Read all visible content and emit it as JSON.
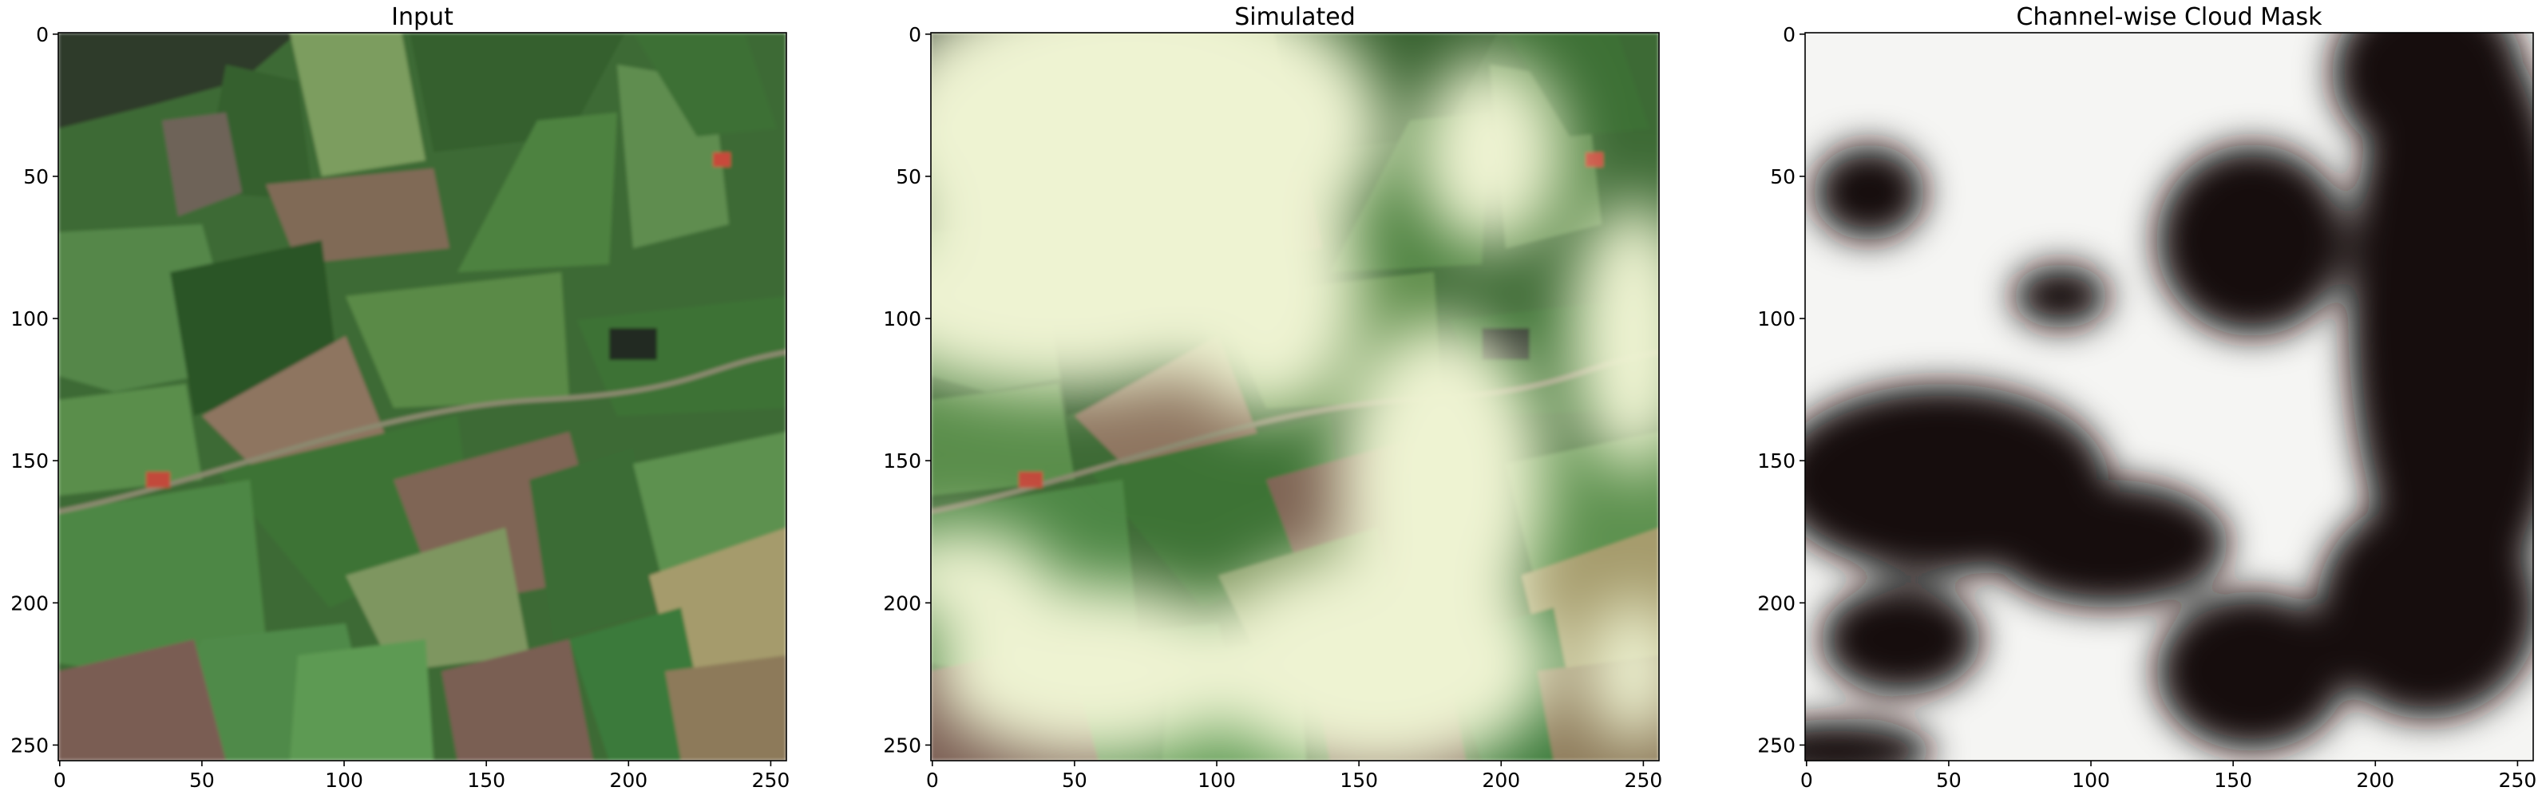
{
  "chart_data": [
    {
      "type": "image",
      "title": "Input",
      "xlim": [
        -0.5,
        255.5
      ],
      "ylim": [
        255.5,
        -0.5
      ],
      "xticks": [
        0,
        50,
        100,
        150,
        200,
        250
      ],
      "yticks": [
        0,
        50,
        100,
        150,
        200,
        250
      ]
    },
    {
      "type": "image",
      "title": "Simulated",
      "xlim": [
        -0.5,
        255.5
      ],
      "ylim": [
        255.5,
        -0.5
      ],
      "xticks": [
        0,
        50,
        100,
        150,
        200,
        250
      ],
      "yticks": [
        0,
        50,
        100,
        150,
        200,
        250
      ]
    },
    {
      "type": "image",
      "title": "Channel-wise Cloud Mask",
      "xlim": [
        -0.5,
        255.5
      ],
      "ylim": [
        255.5,
        -0.5
      ],
      "xticks": [
        0,
        50,
        100,
        150,
        200,
        250
      ],
      "yticks": [
        0,
        50,
        100,
        150,
        200,
        250
      ]
    }
  ]
}
